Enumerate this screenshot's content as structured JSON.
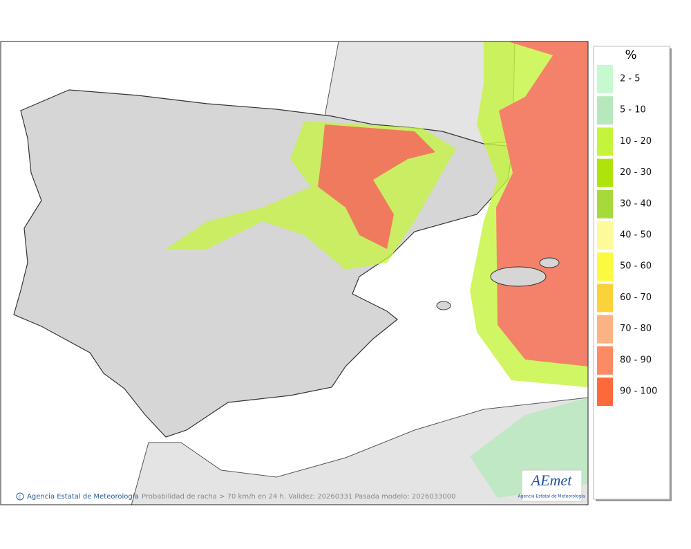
{
  "legend": {
    "title": "%",
    "items": [
      {
        "label": "2 - 5",
        "color": "#c6f9cf"
      },
      {
        "label": "5 - 10",
        "color": "#b6e8bc"
      },
      {
        "label": "10 - 20",
        "color": "#c6f43c"
      },
      {
        "label": "20 - 30",
        "color": "#aee40c"
      },
      {
        "label": "30 - 40",
        "color": "#a6da3a"
      },
      {
        "label": "40 - 50",
        "color": "#fcfa9a"
      },
      {
        "label": "50 - 60",
        "color": "#fcfa40"
      },
      {
        "label": "60 - 70",
        "color": "#fcd23c"
      },
      {
        "label": "70 - 80",
        "color": "#fcb282"
      },
      {
        "label": "80 - 90",
        "color": "#fc8a64"
      },
      {
        "label": "90 - 100",
        "color": "#fc6a3c"
      }
    ]
  },
  "credit": "Agencia Estatal de Meteorología",
  "caption": "Probabilidad de racha > 70 km/h en 24 h. Validez: 20260331 Pasada modelo: 2026033000",
  "logo": {
    "name": "AEmet",
    "subtitle": "Agencia Estatal de Meteorología"
  }
}
